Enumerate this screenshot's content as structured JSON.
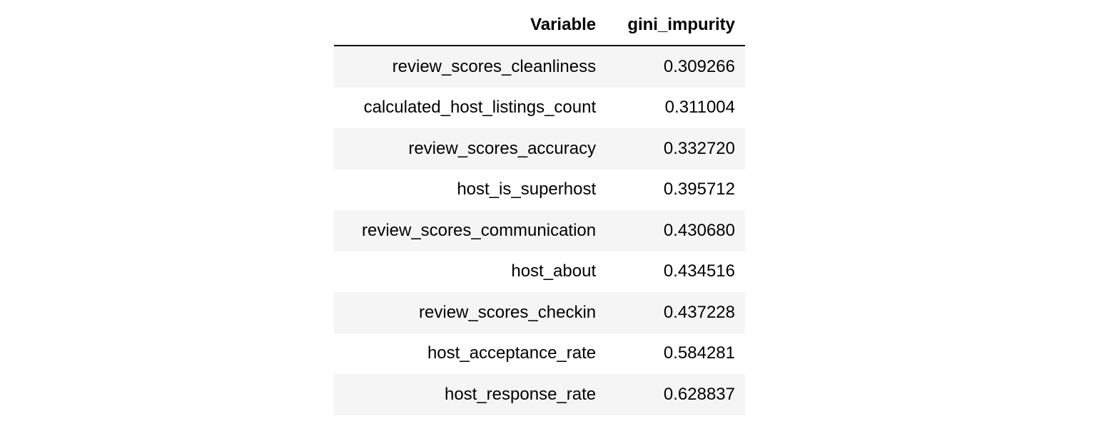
{
  "table": {
    "headers": [
      "Variable",
      "gini_impurity"
    ],
    "rows": [
      {
        "variable": "review_scores_cleanliness",
        "gini_impurity": "0.309266"
      },
      {
        "variable": "calculated_host_listings_count",
        "gini_impurity": "0.311004"
      },
      {
        "variable": "review_scores_accuracy",
        "gini_impurity": "0.332720"
      },
      {
        "variable": "host_is_superhost",
        "gini_impurity": "0.395712"
      },
      {
        "variable": "review_scores_communication",
        "gini_impurity": "0.430680"
      },
      {
        "variable": "host_about",
        "gini_impurity": "0.434516"
      },
      {
        "variable": "review_scores_checkin",
        "gini_impurity": "0.437228"
      },
      {
        "variable": "host_acceptance_rate",
        "gini_impurity": "0.584281"
      },
      {
        "variable": "host_response_rate",
        "gini_impurity": "0.628837"
      }
    ]
  }
}
